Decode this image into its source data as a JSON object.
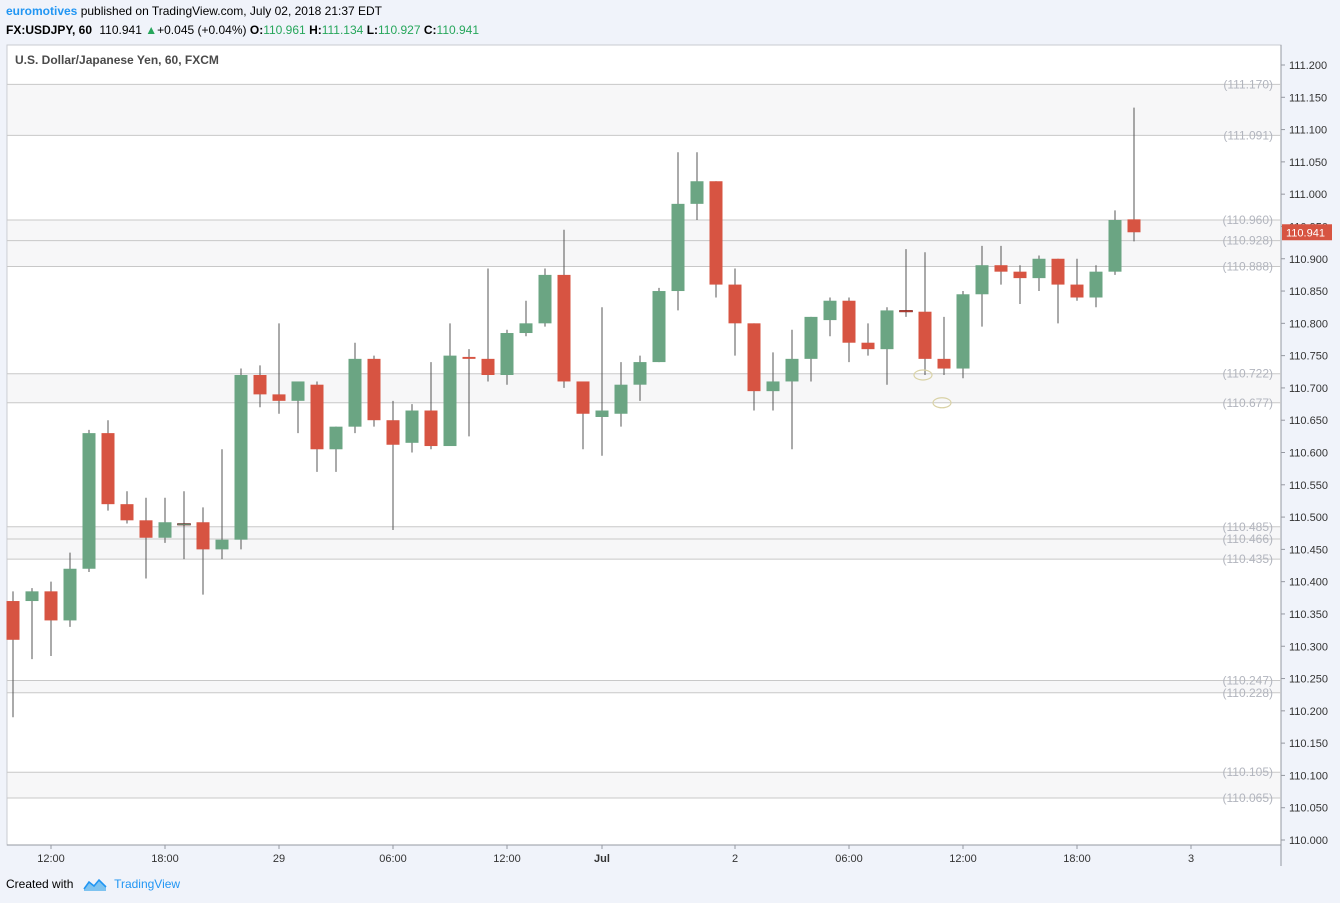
{
  "header": {
    "author": "euromotives",
    "published_text": "published on TradingView.com, July 02, 2018 21:37 EDT",
    "symbol": "FX:USDJPY, 60",
    "last": "110.941",
    "change": "+0.045 (+0.04%)",
    "open_label": "O:",
    "open": "110.961",
    "high_label": "H:",
    "high": "111.134",
    "low_label": "L:",
    "low": "110.927",
    "close_label": "C:",
    "close": "110.941"
  },
  "footer": {
    "created_with": "Created with",
    "brand": "TradingView"
  },
  "colors": {
    "up": "#6ba583",
    "down": "#d75442",
    "price_tag": "#d75442",
    "level_line": "#c8c8c8",
    "level_label": "#b2b5be"
  },
  "chart_data": {
    "type": "candlestick",
    "title": "U.S. Dollar/Japanese Yen, 60, FXCM",
    "ylim": [
      110.0,
      111.2
    ],
    "y_ticks": [
      "111.200",
      "111.150",
      "111.100",
      "111.050",
      "111.000",
      "110.950",
      "110.900",
      "110.850",
      "110.800",
      "110.750",
      "110.700",
      "110.650",
      "110.600",
      "110.550",
      "110.500",
      "110.450",
      "110.400",
      "110.350",
      "110.300",
      "110.250",
      "110.200",
      "110.150",
      "110.100",
      "110.050",
      "110.000"
    ],
    "x_ticks": [
      {
        "index": 2,
        "label": "12:00"
      },
      {
        "index": 8,
        "label": "18:00"
      },
      {
        "index": 14,
        "label": "29"
      },
      {
        "index": 20,
        "label": "06:00"
      },
      {
        "index": 26,
        "label": "12:00"
      },
      {
        "index": 31,
        "label": "Jul"
      },
      {
        "index": 38,
        "label": "2"
      },
      {
        "index": 44,
        "label": "06:00"
      },
      {
        "index": 50,
        "label": "12:00"
      },
      {
        "index": 56,
        "label": "18:00"
      },
      {
        "index": 62,
        "label": "3"
      }
    ],
    "candles": [
      [
        110.37,
        110.385,
        110.19,
        110.31
      ],
      [
        110.37,
        110.39,
        110.28,
        110.385
      ],
      [
        110.385,
        110.4,
        110.285,
        110.34
      ],
      [
        110.34,
        110.445,
        110.33,
        110.42
      ],
      [
        110.42,
        110.635,
        110.415,
        110.63
      ],
      [
        110.63,
        110.65,
        110.51,
        110.52
      ],
      [
        110.52,
        110.54,
        110.49,
        110.495
      ],
      [
        110.495,
        110.53,
        110.405,
        110.468
      ],
      [
        110.468,
        110.53,
        110.46,
        110.492
      ],
      [
        110.49,
        110.54,
        110.435,
        110.49
      ],
      [
        110.492,
        110.515,
        110.38,
        110.45
      ],
      [
        110.45,
        110.605,
        110.435,
        110.465
      ],
      [
        110.465,
        110.73,
        110.45,
        110.72
      ],
      [
        110.72,
        110.735,
        110.67,
        110.69
      ],
      [
        110.69,
        110.8,
        110.66,
        110.68
      ],
      [
        110.68,
        110.71,
        110.63,
        110.71
      ],
      [
        110.705,
        110.71,
        110.57,
        110.605
      ],
      [
        110.605,
        110.64,
        110.57,
        110.64
      ],
      [
        110.64,
        110.77,
        110.63,
        110.745
      ],
      [
        110.745,
        110.75,
        110.64,
        110.65
      ],
      [
        110.65,
        110.68,
        110.48,
        110.612
      ],
      [
        110.615,
        110.675,
        110.6,
        110.665
      ],
      [
        110.665,
        110.74,
        110.605,
        110.61
      ],
      [
        110.61,
        110.8,
        110.61,
        110.75
      ],
      [
        110.748,
        110.76,
        110.625,
        110.745
      ],
      [
        110.745,
        110.885,
        110.71,
        110.72
      ],
      [
        110.72,
        110.79,
        110.705,
        110.785
      ],
      [
        110.785,
        110.835,
        110.78,
        110.8
      ],
      [
        110.8,
        110.885,
        110.795,
        110.875
      ],
      [
        110.875,
        110.945,
        110.7,
        110.71
      ],
      [
        110.71,
        110.71,
        110.605,
        110.66
      ],
      [
        110.655,
        110.825,
        110.595,
        110.665
      ],
      [
        110.66,
        110.74,
        110.64,
        110.705
      ],
      [
        110.705,
        110.75,
        110.68,
        110.74
      ],
      [
        110.74,
        110.855,
        110.74,
        110.85
      ],
      [
        110.85,
        111.065,
        110.82,
        110.985
      ],
      [
        110.985,
        111.065,
        110.96,
        111.02
      ],
      [
        111.02,
        111.02,
        110.84,
        110.86
      ],
      [
        110.86,
        110.885,
        110.75,
        110.8
      ],
      [
        110.8,
        110.8,
        110.665,
        110.695
      ],
      [
        110.695,
        110.755,
        110.665,
        110.71
      ],
      [
        110.71,
        110.79,
        110.605,
        110.745
      ],
      [
        110.745,
        110.81,
        110.71,
        110.81
      ],
      [
        110.805,
        110.84,
        110.78,
        110.835
      ],
      [
        110.835,
        110.84,
        110.74,
        110.77
      ],
      [
        110.77,
        110.8,
        110.75,
        110.76
      ],
      [
        110.76,
        110.825,
        110.705,
        110.82
      ],
      [
        110.82,
        110.915,
        110.81,
        110.818
      ],
      [
        110.818,
        110.91,
        110.72,
        110.745
      ],
      [
        110.745,
        110.81,
        110.72,
        110.73
      ],
      [
        110.73,
        110.85,
        110.715,
        110.845
      ],
      [
        110.845,
        110.92,
        110.795,
        110.89
      ],
      [
        110.89,
        110.92,
        110.86,
        110.88
      ],
      [
        110.88,
        110.89,
        110.83,
        110.87
      ],
      [
        110.87,
        110.905,
        110.85,
        110.9
      ],
      [
        110.9,
        110.9,
        110.8,
        110.86
      ],
      [
        110.86,
        110.9,
        110.835,
        110.84
      ],
      [
        110.84,
        110.89,
        110.825,
        110.88
      ],
      [
        110.88,
        110.975,
        110.875,
        110.96
      ],
      [
        110.961,
        111.134,
        110.927,
        110.941
      ]
    ],
    "levels": [
      {
        "value": 111.17,
        "label": "(111.170)"
      },
      {
        "value": 111.091,
        "label": "(111.091)"
      },
      {
        "value": 110.96,
        "label": "(110.960)"
      },
      {
        "value": 110.928,
        "label": "(110.928)"
      },
      {
        "value": 110.888,
        "label": "(110.888)"
      },
      {
        "value": 110.722,
        "label": "(110.722)"
      },
      {
        "value": 110.677,
        "label": "(110.677)"
      },
      {
        "value": 110.485,
        "label": "(110.485)"
      },
      {
        "value": 110.466,
        "label": "(110.466)"
      },
      {
        "value": 110.435,
        "label": "(110.435)"
      },
      {
        "value": 110.247,
        "label": "(110.247)"
      },
      {
        "value": 110.228,
        "label": "(110.228)"
      },
      {
        "value": 110.105,
        "label": "(110.105)"
      },
      {
        "value": 110.065,
        "label": "(110.065)"
      }
    ],
    "price_tag": {
      "value": 110.941,
      "label": "110.941"
    },
    "markers": [
      {
        "index": 48,
        "value": 110.72
      },
      {
        "index": 49,
        "value": 110.677
      }
    ]
  }
}
